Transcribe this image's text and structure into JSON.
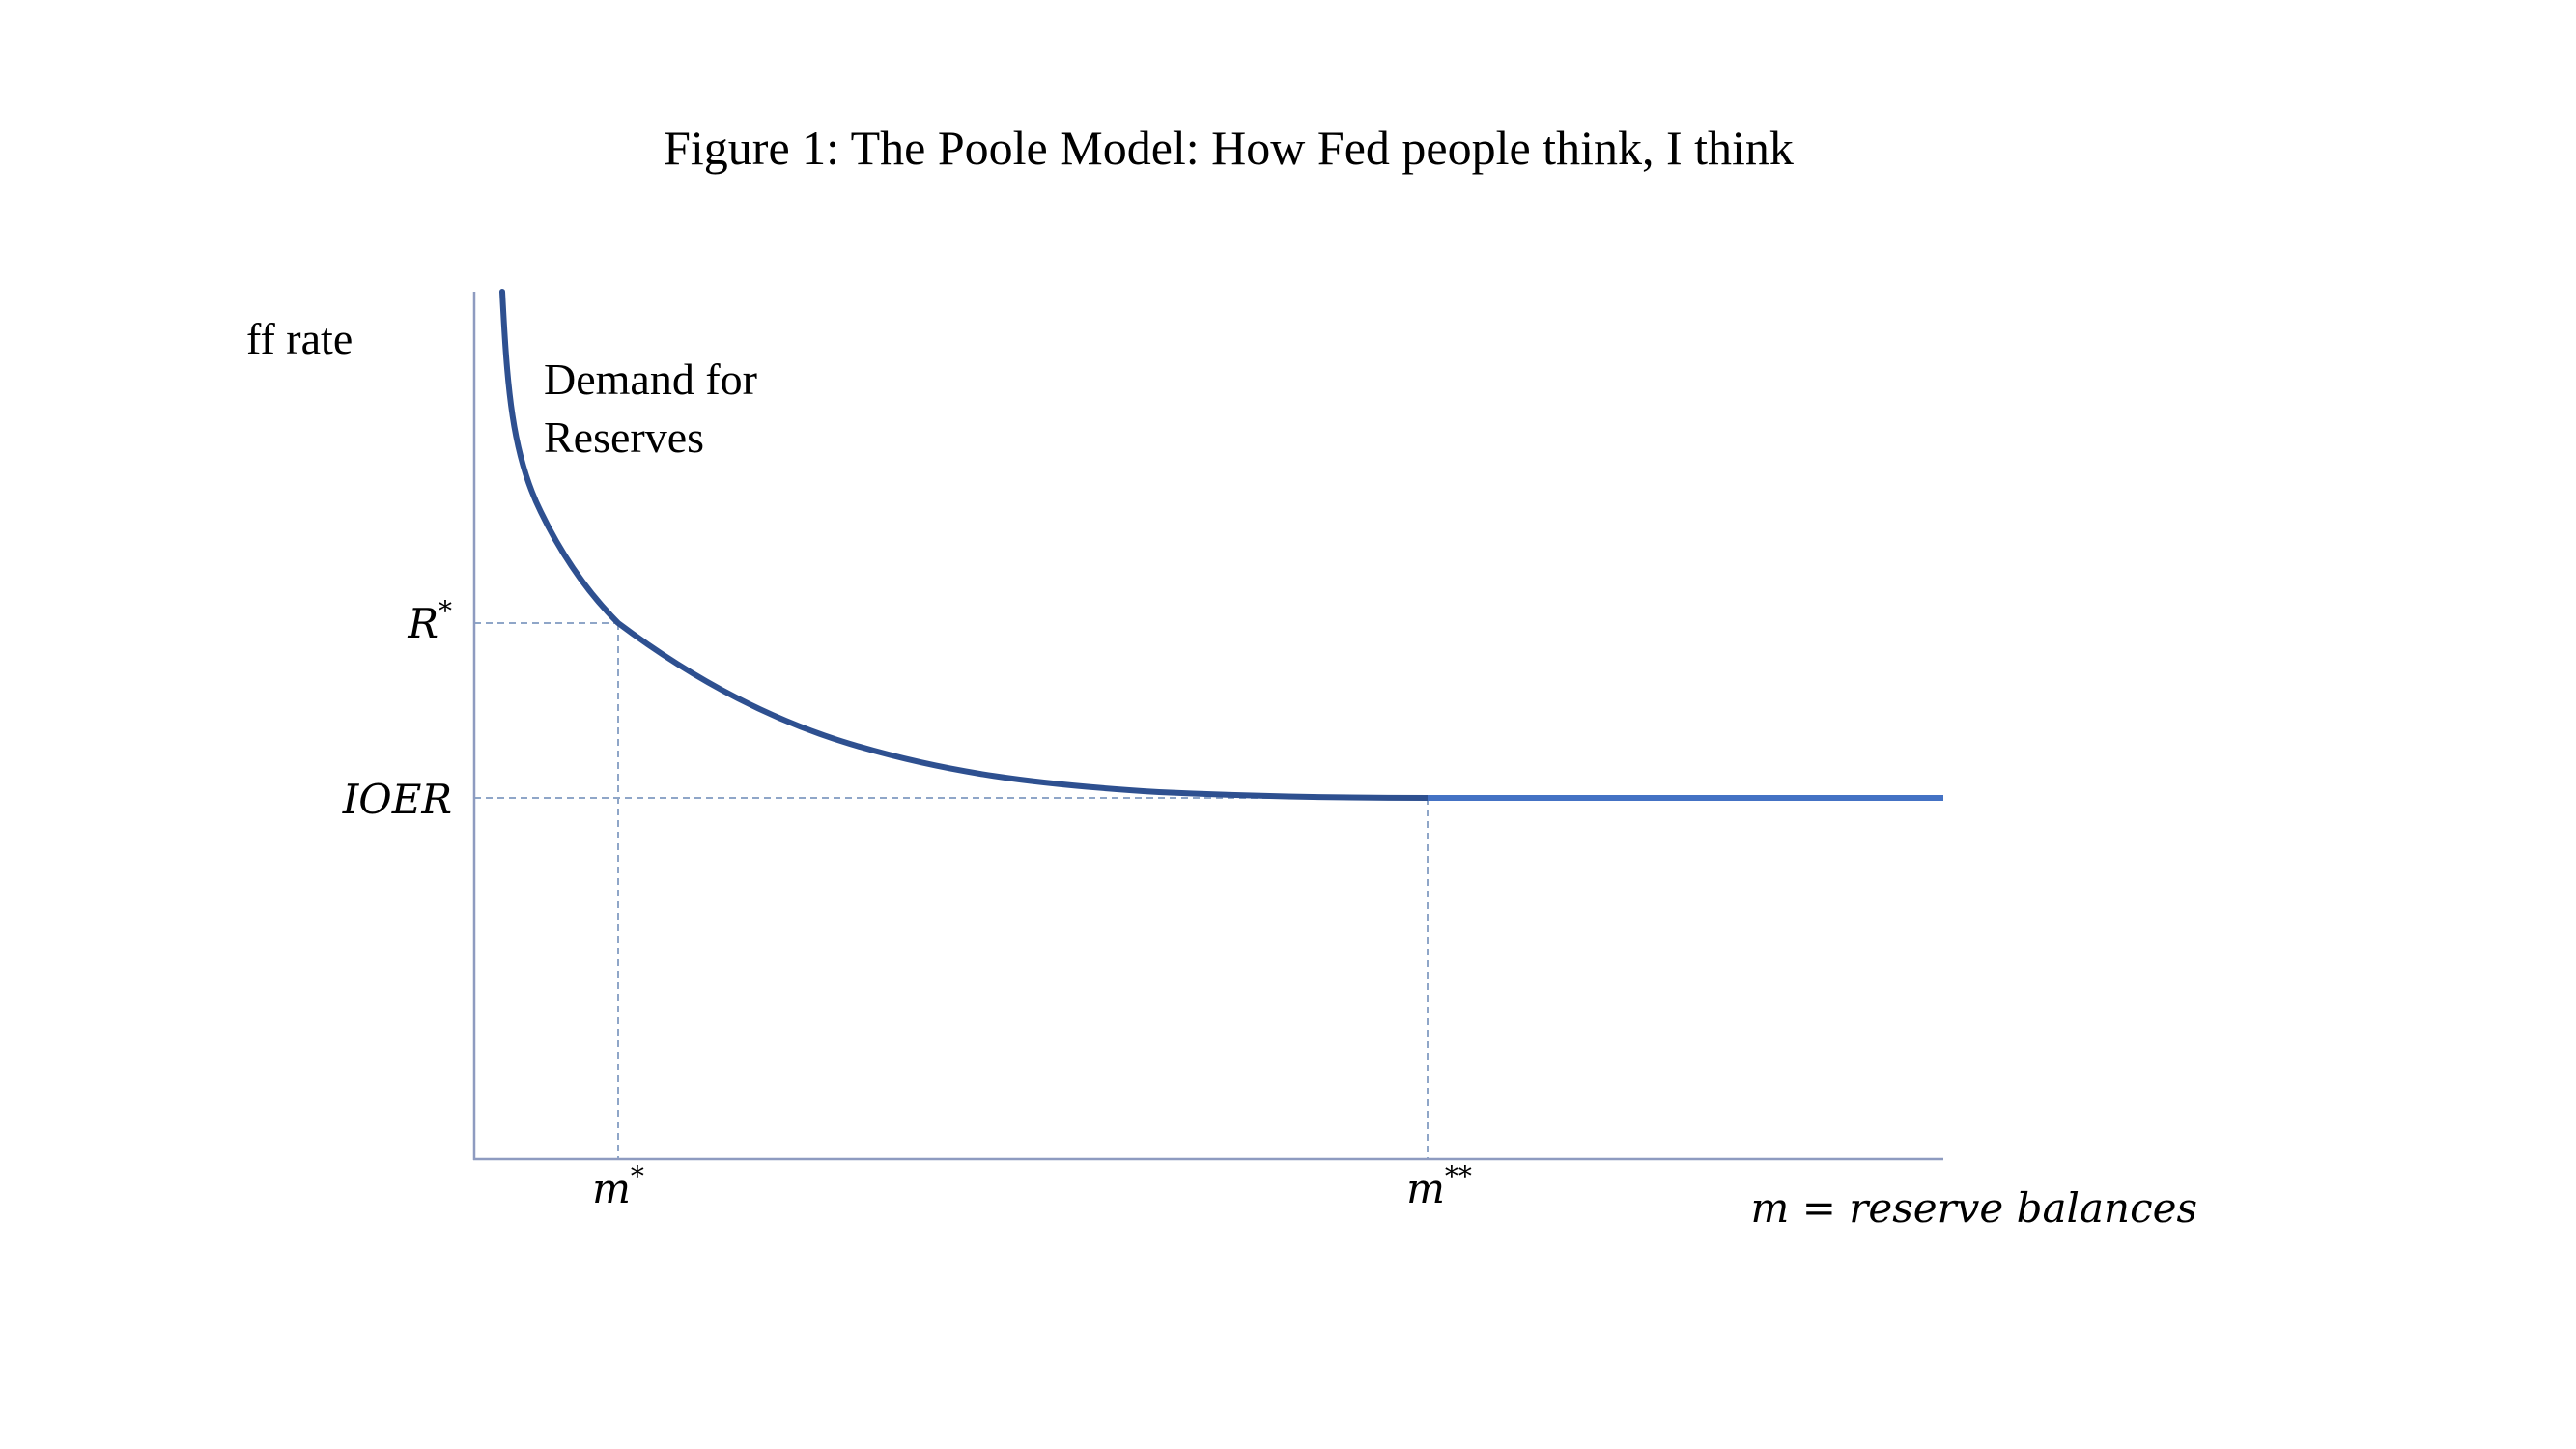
{
  "figure": {
    "title": "Figure 1: The Poole Model: How Fed people think, I think"
  },
  "axes": {
    "y_label": "ff rate",
    "x_label": "m = reserve balances"
  },
  "levels": {
    "r_star_label": "R",
    "r_star_sup": "*",
    "ioer_label": "IOER"
  },
  "quantities": {
    "m_star_label": "m",
    "m_star_sup": "*",
    "m_2star_label": "m",
    "m_2star_sup": "**"
  },
  "curve": {
    "label_line1": "Demand for",
    "label_line2": "Reserves"
  },
  "colors": {
    "axis": "#8e9bc0",
    "curve": "#2e5090",
    "flat_segment": "#4472c4",
    "guide": "#8fa6c8",
    "text": "#000000"
  }
}
